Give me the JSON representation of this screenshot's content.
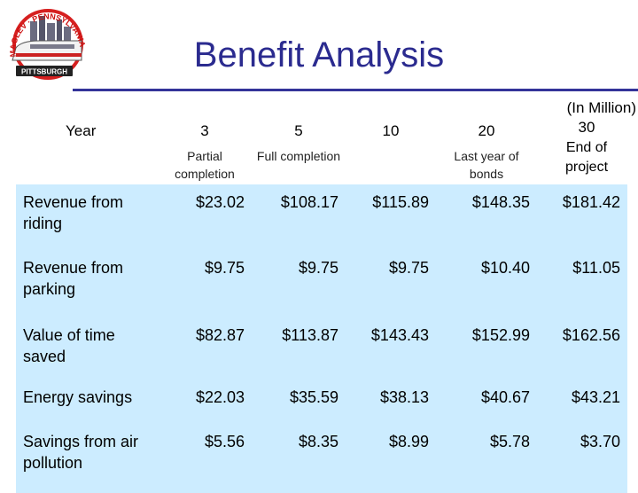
{
  "logo": {
    "top_text": "MAGLEV · PENNSYLVANIA",
    "bottom_text": "PITTSBURGH",
    "colors": {
      "ring": "#d62020",
      "train": "#f2f2f2",
      "stripe": "#cc2222",
      "skyline": "#555566"
    }
  },
  "title": "Benefit Analysis",
  "unit_note": "(In Million)",
  "table": {
    "year_label": "Year",
    "columns": [
      {
        "year": "3",
        "note": "Partial completion"
      },
      {
        "year": "5",
        "note": "Full completion"
      },
      {
        "year": "10",
        "note": ""
      },
      {
        "year": "20",
        "note": "Last year of bonds"
      },
      {
        "year": "30",
        "note": "End of project"
      }
    ],
    "rows": [
      {
        "label": "Revenue from riding",
        "values": [
          "$23.02",
          "$108.17",
          "$115.89",
          "$148.35",
          "$181.42"
        ]
      },
      {
        "label": "Revenue from parking",
        "values": [
          "$9.75",
          "$9.75",
          "$9.75",
          "$10.40",
          "$11.05"
        ]
      },
      {
        "label": "Value of time saved",
        "values": [
          "$82.87",
          "$113.87",
          "$143.43",
          "$152.99",
          "$162.56"
        ]
      },
      {
        "label": "Energy savings",
        "values": [
          "$22.03",
          "$35.59",
          "$38.13",
          "$40.67",
          "$43.21"
        ]
      },
      {
        "label": "Savings from air pollution",
        "values": [
          "$5.56",
          "$8.35",
          "$8.99",
          "$5.78",
          "$3.70"
        ]
      }
    ]
  },
  "colors": {
    "title": "#2b2b8f",
    "rule": "#333399",
    "row_fill": "#ccecff"
  }
}
